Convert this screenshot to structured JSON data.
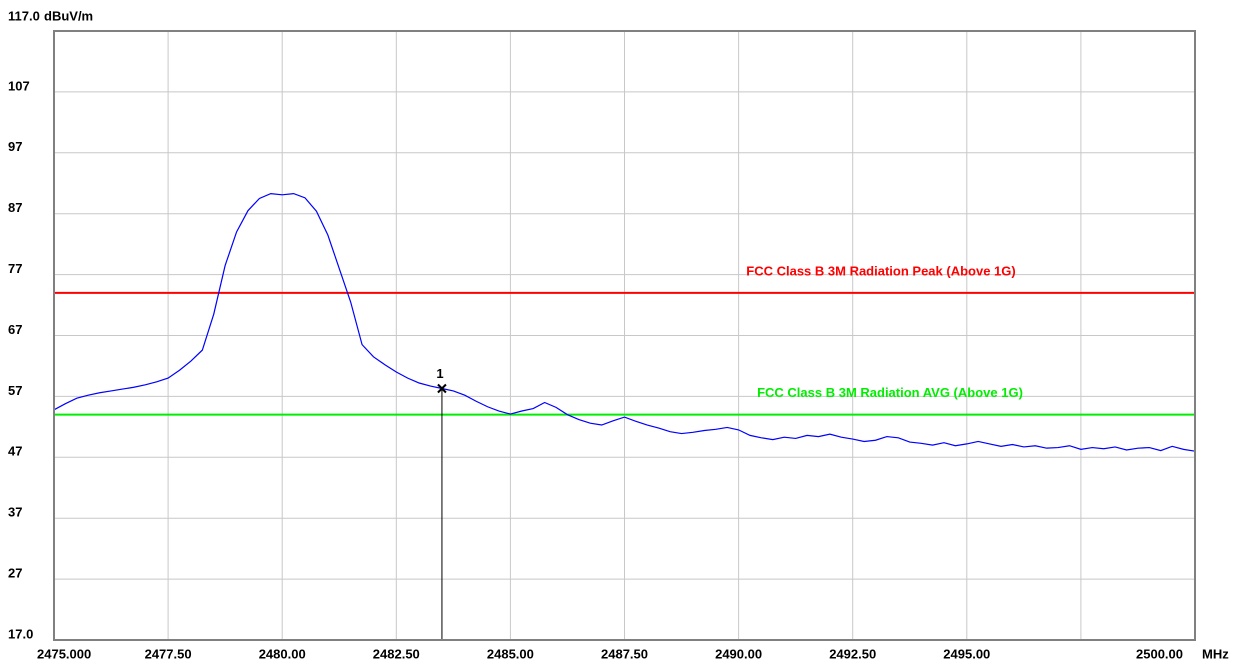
{
  "chart_data": {
    "type": "line",
    "y_unit": "dBuV/m",
    "x_unit": "MHz",
    "xlim": [
      2475,
      2500
    ],
    "ylim": [
      17,
      117
    ],
    "xticks": [
      {
        "value": 2475,
        "label": "2475.000"
      },
      {
        "value": 2477.5,
        "label": "2477.50"
      },
      {
        "value": 2480,
        "label": "2480.00"
      },
      {
        "value": 2482.5,
        "label": "2482.50"
      },
      {
        "value": 2485,
        "label": "2485.00"
      },
      {
        "value": 2487.5,
        "label": "2487.50"
      },
      {
        "value": 2490,
        "label": "2490.00"
      },
      {
        "value": 2492.5,
        "label": "2492.50"
      },
      {
        "value": 2495,
        "label": "2495.00"
      },
      {
        "value": 2497.5,
        "label": null
      },
      {
        "value": 2500,
        "label": "2500.00"
      }
    ],
    "yticks": [
      {
        "value": 17,
        "label": "17.0"
      },
      27,
      37,
      47,
      57,
      67,
      77,
      87,
      97,
      107,
      {
        "value": 117,
        "label": "117.0"
      }
    ],
    "grid": true,
    "limits": [
      {
        "name": "FCC Class B 3M Radiation Peak (Above 1G)",
        "value": 74,
        "color": "#ff0000"
      },
      {
        "name": "FCC Class B 3M Radiation AVG (Above 1G)",
        "value": 54,
        "color": "#00ee00"
      }
    ],
    "markers": [
      {
        "label": "1",
        "x": 2483.5,
        "y": 58.3
      }
    ],
    "series": [
      {
        "color": "#0000ff",
        "x": [
          2475,
          2475.25,
          2475.5,
          2475.75,
          2476,
          2476.25,
          2476.5,
          2476.75,
          2477,
          2477.25,
          2477.5,
          2477.75,
          2478,
          2478.25,
          2478.5,
          2478.75,
          2479,
          2479.25,
          2479.5,
          2479.75,
          2480,
          2480.25,
          2480.5,
          2480.75,
          2481,
          2481.25,
          2481.5,
          2481.75,
          2482,
          2482.25,
          2482.5,
          2482.75,
          2483,
          2483.25,
          2483.5,
          2483.75,
          2484,
          2484.25,
          2484.5,
          2484.75,
          2485,
          2485.25,
          2485.5,
          2485.75,
          2486,
          2486.25,
          2486.5,
          2486.75,
          2487,
          2487.25,
          2487.5,
          2487.75,
          2488,
          2488.25,
          2488.5,
          2488.75,
          2489,
          2489.25,
          2489.5,
          2489.75,
          2490,
          2490.25,
          2490.5,
          2490.75,
          2491,
          2491.25,
          2491.5,
          2491.75,
          2492,
          2492.25,
          2492.5,
          2492.75,
          2493,
          2493.25,
          2493.5,
          2493.75,
          2494,
          2494.25,
          2494.5,
          2494.75,
          2495,
          2495.25,
          2495.5,
          2495.75,
          2496,
          2496.25,
          2496.5,
          2496.75,
          2497,
          2497.25,
          2497.5,
          2497.75,
          2498,
          2498.25,
          2498.5,
          2498.75,
          2499,
          2499.25,
          2499.5,
          2499.75,
          2500
        ],
        "values": [
          54.8,
          55.8,
          56.7,
          57.2,
          57.6,
          57.9,
          58.2,
          58.5,
          58.9,
          59.4,
          60.0,
          61.3,
          62.8,
          64.6,
          70.5,
          78.5,
          84.0,
          87.5,
          89.5,
          90.3,
          90.1,
          90.3,
          89.6,
          87.4,
          83.5,
          78.0,
          72.5,
          65.5,
          63.5,
          62.2,
          61.0,
          60.0,
          59.2,
          58.7,
          58.3,
          57.9,
          57.2,
          56.2,
          55.3,
          54.6,
          54.1,
          54.6,
          55.0,
          56.0,
          55.2,
          54.0,
          53.2,
          52.6,
          52.3,
          53.0,
          53.6,
          52.9,
          52.3,
          51.8,
          51.2,
          50.9,
          51.1,
          51.4,
          51.6,
          51.9,
          51.5,
          50.6,
          50.2,
          49.9,
          50.3,
          50.1,
          50.6,
          50.4,
          50.8,
          50.3,
          50.0,
          49.6,
          49.8,
          50.4,
          50.2,
          49.5,
          49.3,
          49.0,
          49.4,
          48.9,
          49.2,
          49.6,
          49.2,
          48.8,
          49.1,
          48.7,
          48.9,
          48.5,
          48.6,
          48.9,
          48.3,
          48.6,
          48.4,
          48.7,
          48.2,
          48.5,
          48.6,
          48.1,
          48.8,
          48.3,
          48.0
        ]
      }
    ]
  }
}
